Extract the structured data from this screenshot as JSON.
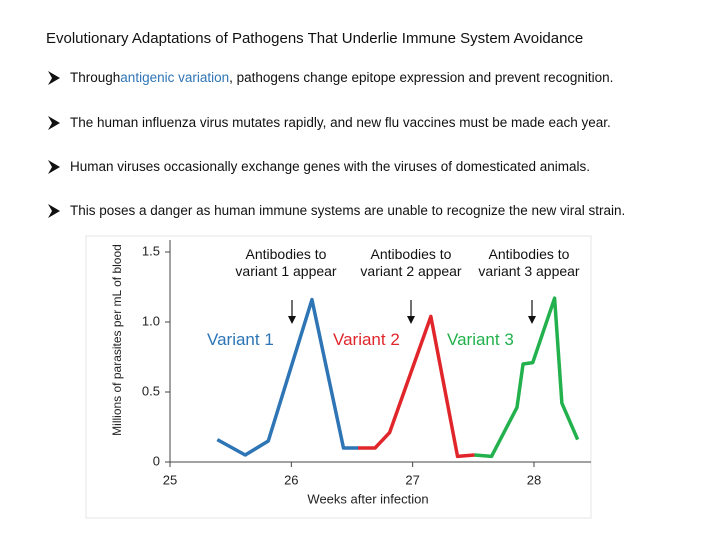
{
  "title": "Evolutionary Adaptations of Pathogens That Underlie Immune System Avoidance",
  "bullets": [
    [
      "Through ",
      "antigenic variation",
      ", pathogens change epitope expression and prevent recognition."
    ],
    [
      "The human influenza virus mutates rapidly, and new flu vaccines must be made each year."
    ],
    [
      "Human viruses occasionally exchange genes with the viruses of domesticated animals."
    ],
    [
      "This poses a danger as human immune systems are unable to recognize the new viral strain."
    ]
  ],
  "chart_data": {
    "type": "line",
    "xlabel": "Weeks after infection",
    "ylabel": "Millions of parasites per mL of blood",
    "xlim": [
      25,
      28.47
    ],
    "xticks": [
      25,
      26,
      27,
      28
    ],
    "ylim": [
      0,
      1.5
    ],
    "yticks": [
      0,
      0.5,
      {
        "value": 1,
        "label": "1.0"
      },
      1.5
    ],
    "series": [
      {
        "name": "Variant 1",
        "color": "#2e75b6",
        "x": [
          25.39,
          25.62,
          25.81,
          26.17,
          26.43,
          26.55
        ],
        "values": [
          0.16,
          0.05,
          0.15,
          1.16,
          0.1,
          0.1
        ]
      },
      {
        "name": "Variant 2",
        "color": "#e0262b",
        "x": [
          26.55,
          26.69,
          26.81,
          27.15,
          27.37,
          27.51
        ],
        "values": [
          0.1,
          0.1,
          0.21,
          1.04,
          0.04,
          0.05
        ]
      },
      {
        "name": "Variant 3",
        "color": "#22b14c",
        "x": [
          27.51,
          27.65,
          27.86,
          27.91,
          27.99,
          28.17,
          28.23,
          28.36
        ],
        "values": [
          0.05,
          0.04,
          0.39,
          0.7,
          0.71,
          1.17,
          0.42,
          0.16
        ]
      }
    ],
    "annotations": [
      "Antibodies to variant 1 appear",
      "Antibodies to variant 2 appear",
      "Antibodies to variant 3 appear"
    ]
  }
}
